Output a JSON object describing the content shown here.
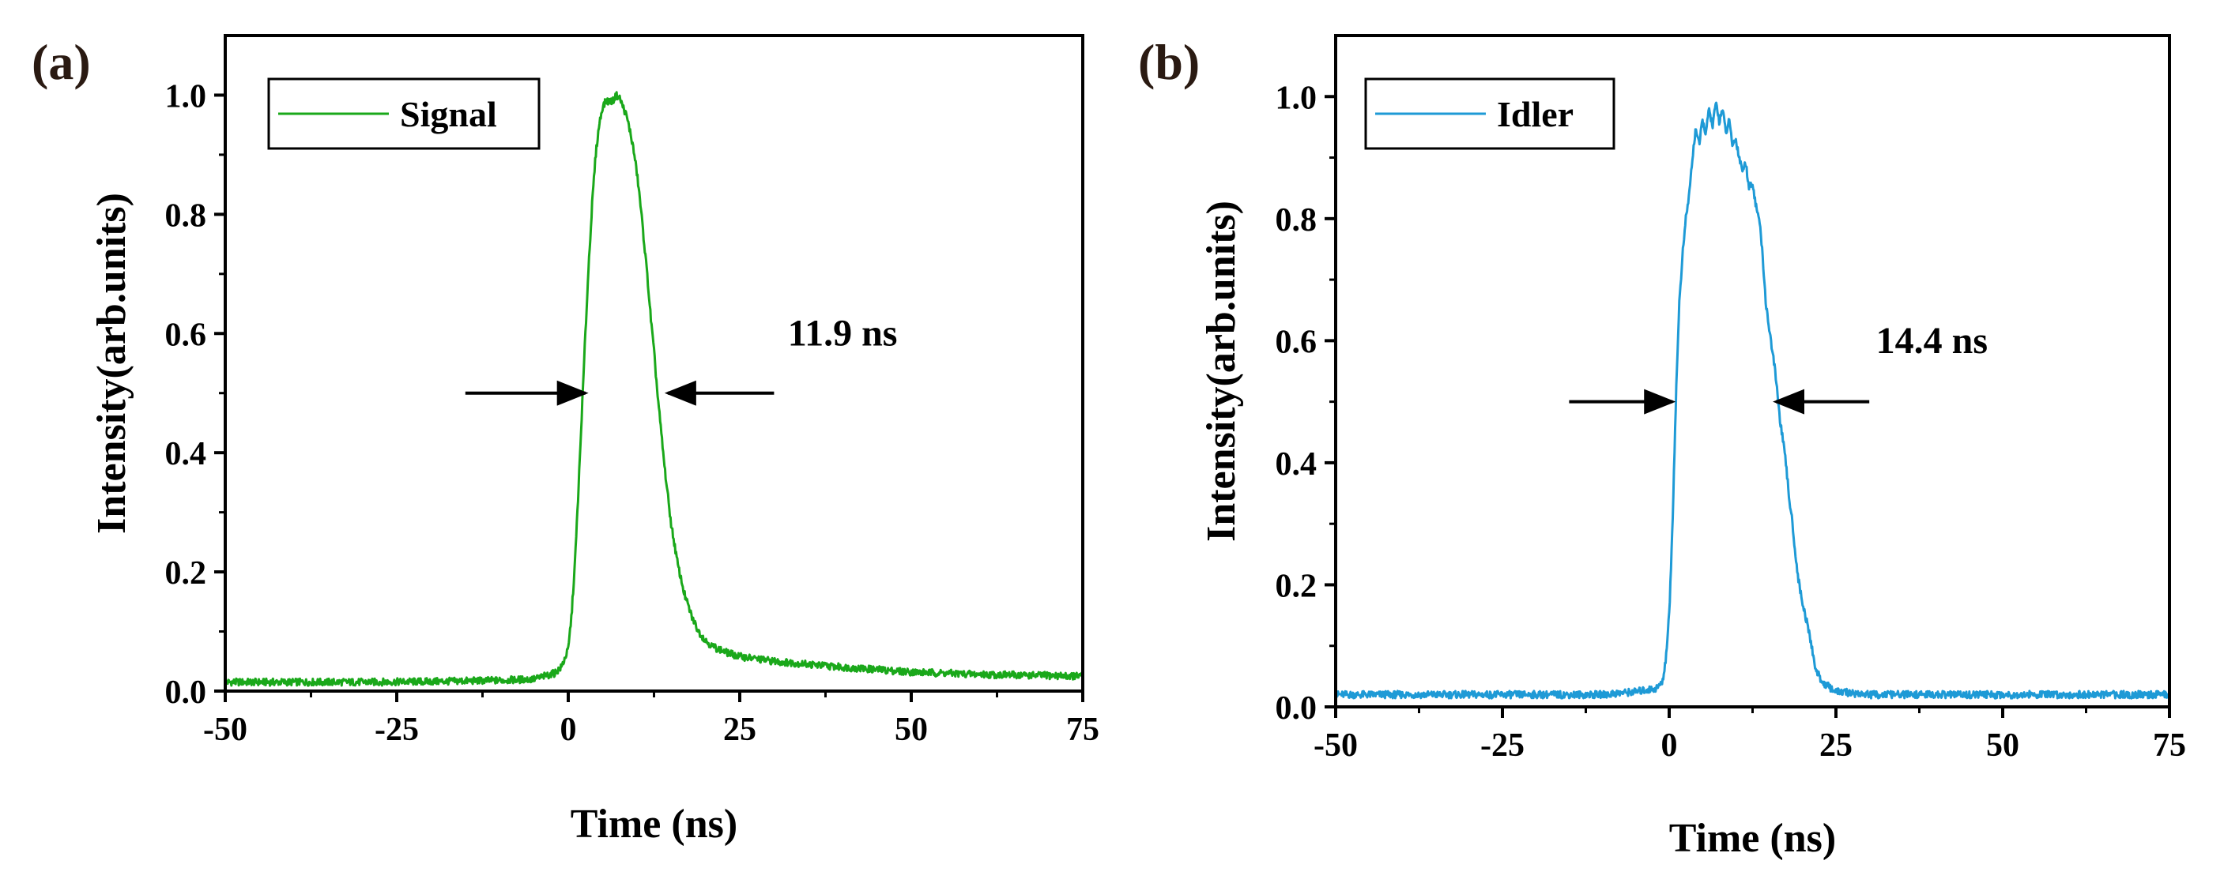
{
  "chart_data": [
    {
      "type": "line",
      "panel_label": "(a)",
      "xlabel": "Time (ns)",
      "ylabel": "Intensity(arb.units)",
      "xlim": [
        -50,
        75
      ],
      "ylim": [
        0.0,
        1.1
      ],
      "x_ticks": [
        -50,
        -25,
        0,
        25,
        50,
        75
      ],
      "x_tick_labels": [
        "-50",
        "-25",
        "0",
        "25",
        "50",
        "75"
      ],
      "y_ticks": [
        0.0,
        0.2,
        0.4,
        0.6,
        0.8,
        1.0
      ],
      "y_tick_labels": [
        "0.0",
        "0.2",
        "0.4",
        "0.6",
        "0.8",
        "1.0"
      ],
      "legend_position": "top-left",
      "series": [
        {
          "name": "Signal",
          "color": "#1aa81a",
          "x": [
            -50,
            -40,
            -30,
            -20,
            -10,
            -5,
            -2,
            -1,
            0,
            0.5,
            1,
            1.5,
            2,
            2.5,
            3,
            3.5,
            4,
            4.5,
            5,
            5.5,
            6,
            6.5,
            7,
            7.5,
            8,
            8.5,
            9,
            9.5,
            10,
            10.5,
            11,
            11.5,
            12,
            12.5,
            13,
            13.5,
            14,
            14.5,
            15,
            16,
            17,
            18,
            19,
            20,
            21,
            22,
            23,
            25,
            30,
            40,
            50,
            60,
            75
          ],
          "y": [
            0.015,
            0.015,
            0.015,
            0.016,
            0.018,
            0.02,
            0.03,
            0.04,
            0.07,
            0.13,
            0.22,
            0.34,
            0.47,
            0.6,
            0.72,
            0.82,
            0.9,
            0.95,
            0.98,
            0.99,
            0.99,
            0.99,
            1.0,
            0.995,
            0.98,
            0.965,
            0.94,
            0.91,
            0.87,
            0.82,
            0.76,
            0.7,
            0.63,
            0.57,
            0.5,
            0.44,
            0.38,
            0.33,
            0.28,
            0.21,
            0.16,
            0.125,
            0.1,
            0.085,
            0.075,
            0.07,
            0.065,
            0.058,
            0.05,
            0.04,
            0.032,
            0.028,
            0.025
          ]
        }
      ],
      "annotations": [
        {
          "text": "11.9 ns",
          "x": 32,
          "y": 0.58
        }
      ],
      "fwhm_arrows": {
        "left_tail": -15,
        "left_tip": 2.5,
        "right_tip": 14.5,
        "right_tail": 30,
        "y": 0.5
      }
    },
    {
      "type": "line",
      "panel_label": "(b)",
      "xlabel": "Time (ns)",
      "ylabel": "Intensity(arb.units)",
      "xlim": [
        -50,
        75
      ],
      "ylim": [
        0.0,
        1.1
      ],
      "x_ticks": [
        -50,
        -25,
        0,
        25,
        50,
        75
      ],
      "x_tick_labels": [
        "-50",
        "-25",
        "0",
        "25",
        "50",
        "75"
      ],
      "y_ticks": [
        0.0,
        0.2,
        0.4,
        0.6,
        0.8,
        1.0
      ],
      "y_tick_labels": [
        "0.0",
        "0.2",
        "0.4",
        "0.6",
        "0.8",
        "1.0"
      ],
      "legend_position": "top-left",
      "series": [
        {
          "name": "Idler",
          "color": "#1e9ad6",
          "x": [
            -50,
            -40,
            -30,
            -20,
            -10,
            -5,
            -2,
            -1,
            -0.5,
            0,
            0.5,
            1,
            1.5,
            2,
            2.5,
            3,
            3.5,
            4,
            4.5,
            5,
            5.5,
            6,
            6.5,
            7,
            7.5,
            8,
            8.5,
            9,
            9.5,
            10,
            10.5,
            11,
            11.5,
            12,
            12.5,
            13,
            13.5,
            14,
            14.5,
            15,
            15.5,
            16,
            16.5,
            17,
            17.5,
            18,
            18.5,
            19,
            19.5,
            20,
            21,
            22,
            23,
            25,
            30,
            40,
            50,
            60,
            75
          ],
          "y": [
            0.02,
            0.02,
            0.02,
            0.02,
            0.02,
            0.025,
            0.03,
            0.04,
            0.08,
            0.15,
            0.3,
            0.5,
            0.66,
            0.74,
            0.8,
            0.84,
            0.9,
            0.95,
            0.92,
            0.96,
            0.94,
            0.98,
            0.95,
            0.99,
            0.96,
            0.98,
            0.94,
            0.96,
            0.92,
            0.93,
            0.9,
            0.88,
            0.89,
            0.85,
            0.86,
            0.82,
            0.8,
            0.74,
            0.66,
            0.62,
            0.58,
            0.54,
            0.48,
            0.44,
            0.4,
            0.34,
            0.3,
            0.24,
            0.2,
            0.17,
            0.12,
            0.06,
            0.04,
            0.025,
            0.02,
            0.02,
            0.02,
            0.02,
            0.02
          ]
        }
      ],
      "annotations": [
        {
          "text": "14.4 ns",
          "x": 31,
          "y": 0.58
        }
      ],
      "fwhm_arrows": {
        "left_tail": -15,
        "left_tip": 0.5,
        "right_tip": 16,
        "right_tail": 30,
        "y": 0.5
      }
    }
  ]
}
